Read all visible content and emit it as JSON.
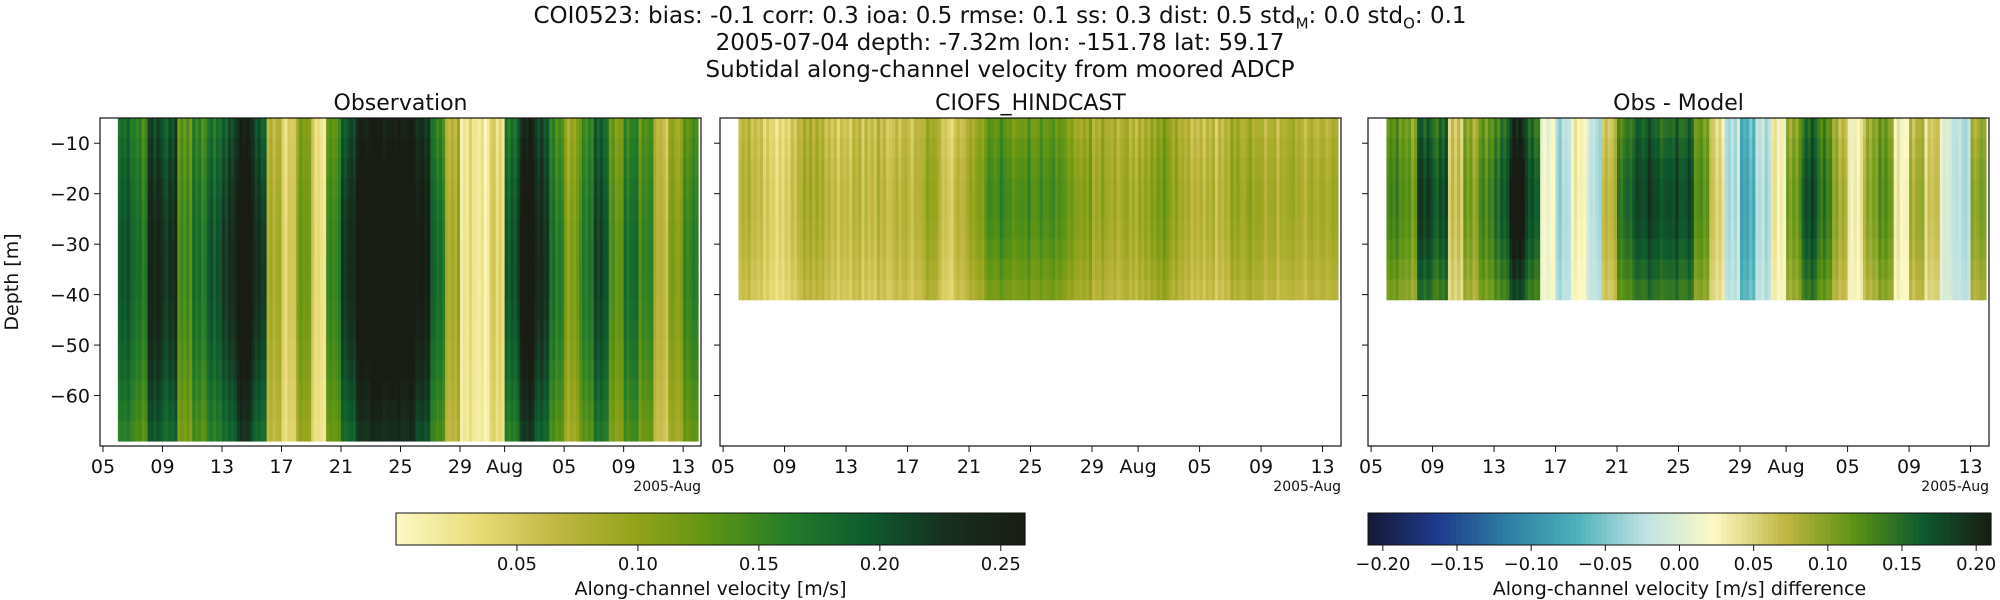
{
  "header": {
    "stats_parts": [
      "COI0523: bias: -0.1  corr: 0.3  ioa: 0.5  rmse: 0.1  ss: 0.3  dist: 0.5  std",
      "M",
      ": 0.0  std",
      "O",
      ": 0.1"
    ],
    "line2": "2005-07-04 depth: -7.32m lon: -151.78 lat: 59.17",
    "line3": "Subtidal along-channel velocity from moored ADCP"
  },
  "colors": {
    "speed_cmap": [
      "#fdf9c4",
      "#e9dd7a",
      "#c2b844",
      "#96a41c",
      "#5e9414",
      "#247c29",
      "#0e5b2f",
      "#17301f",
      "#181c13"
    ],
    "diff_cmap": [
      "#141934",
      "#1e3a8c",
      "#2d7fa3",
      "#4cb0b9",
      "#bfe3e3",
      "#fdf9c4",
      "#c2b844",
      "#5e9414",
      "#0e5b2f",
      "#181c13"
    ]
  },
  "chart_data": [
    {
      "type": "heatmap",
      "title": "Observation",
      "ylabel": "Depth [m]",
      "x_start": "2005-07-06",
      "x_end": "2005-08-13",
      "xticklabels": [
        "05",
        "09",
        "13",
        "17",
        "21",
        "25",
        "29",
        "Aug",
        "05",
        "09",
        "13"
      ],
      "x_offset_label": "2005-Aug",
      "y_range": [
        -70,
        -5
      ],
      "yticks": [
        -10,
        -20,
        -30,
        -40,
        -50,
        -60
      ],
      "depth_range": [
        -69,
        -5
      ],
      "daily_profile": [
        0.17,
        0.15,
        0.22,
        0.2,
        0.12,
        0.15,
        0.18,
        0.2,
        0.24,
        0.2,
        0.08,
        0.04,
        0.1,
        0.03,
        0.14,
        0.2,
        0.24,
        0.26,
        0.26,
        0.25,
        0.22,
        0.16,
        0.08,
        0.02,
        0.01,
        0.04,
        0.18,
        0.24,
        0.2,
        0.15,
        0.1,
        0.14,
        0.18,
        0.12,
        0.16,
        0.13,
        0.06,
        0.1,
        0.14
      ],
      "colorbar": {
        "label": "Along-channel velocity [m/s]",
        "range": [
          0.0,
          0.26
        ],
        "ticks": [
          "0.05",
          "0.10",
          "0.15",
          "0.20",
          "0.25"
        ]
      }
    },
    {
      "type": "heatmap",
      "title": "CIOFS_HINDCAST",
      "x_start": "2005-07-06",
      "x_end": "2005-08-13",
      "xticklabels": [
        "05",
        "09",
        "13",
        "17",
        "21",
        "25",
        "29",
        "Aug",
        "05",
        "09",
        "13"
      ],
      "x_offset_label": "2005-Aug",
      "y_range": [
        -70,
        -5
      ],
      "depth_range": [
        -41,
        -5
      ],
      "daily_profile": [
        0.06,
        0.05,
        0.04,
        0.05,
        0.07,
        0.07,
        0.06,
        0.06,
        0.05,
        0.06,
        0.07,
        0.06,
        0.08,
        0.05,
        0.07,
        0.09,
        0.12,
        0.13,
        0.13,
        0.12,
        0.12,
        0.11,
        0.1,
        0.08,
        0.07,
        0.08,
        0.09,
        0.1,
        0.08,
        0.07,
        0.07,
        0.06,
        0.08,
        0.09,
        0.08,
        0.07,
        0.07,
        0.08,
        0.08
      ]
    },
    {
      "type": "heatmap",
      "title": "Obs - Model",
      "x_start": "2005-07-06",
      "x_end": "2005-08-13",
      "xticklabels": [
        "05",
        "09",
        "13",
        "17",
        "21",
        "25",
        "29",
        "Aug",
        "05",
        "09",
        "13"
      ],
      "x_offset_label": "2005-Aug",
      "y_range": [
        -70,
        -5
      ],
      "depth_range": [
        -41,
        -5
      ],
      "daily_profile": [
        0.11,
        0.1,
        0.17,
        0.15,
        0.05,
        0.09,
        0.12,
        0.14,
        0.19,
        0.15,
        0.02,
        -0.03,
        0.02,
        -0.02,
        0.07,
        0.13,
        0.15,
        0.16,
        0.16,
        0.15,
        0.1,
        0.05,
        -0.02,
        -0.07,
        -0.03,
        0.03,
        0.1,
        0.15,
        0.12,
        0.08,
        0.03,
        0.08,
        0.1,
        0.03,
        0.08,
        0.05,
        -0.01,
        -0.02,
        0.09
      ],
      "colorbar": {
        "label": "Along-channel velocity [m/s] difference",
        "range": [
          -0.21,
          0.21
        ],
        "ticks": [
          "−0.20",
          "−0.15",
          "−0.10",
          "−0.05",
          "0.00",
          "0.05",
          "0.10",
          "0.15",
          "0.20"
        ]
      }
    }
  ]
}
